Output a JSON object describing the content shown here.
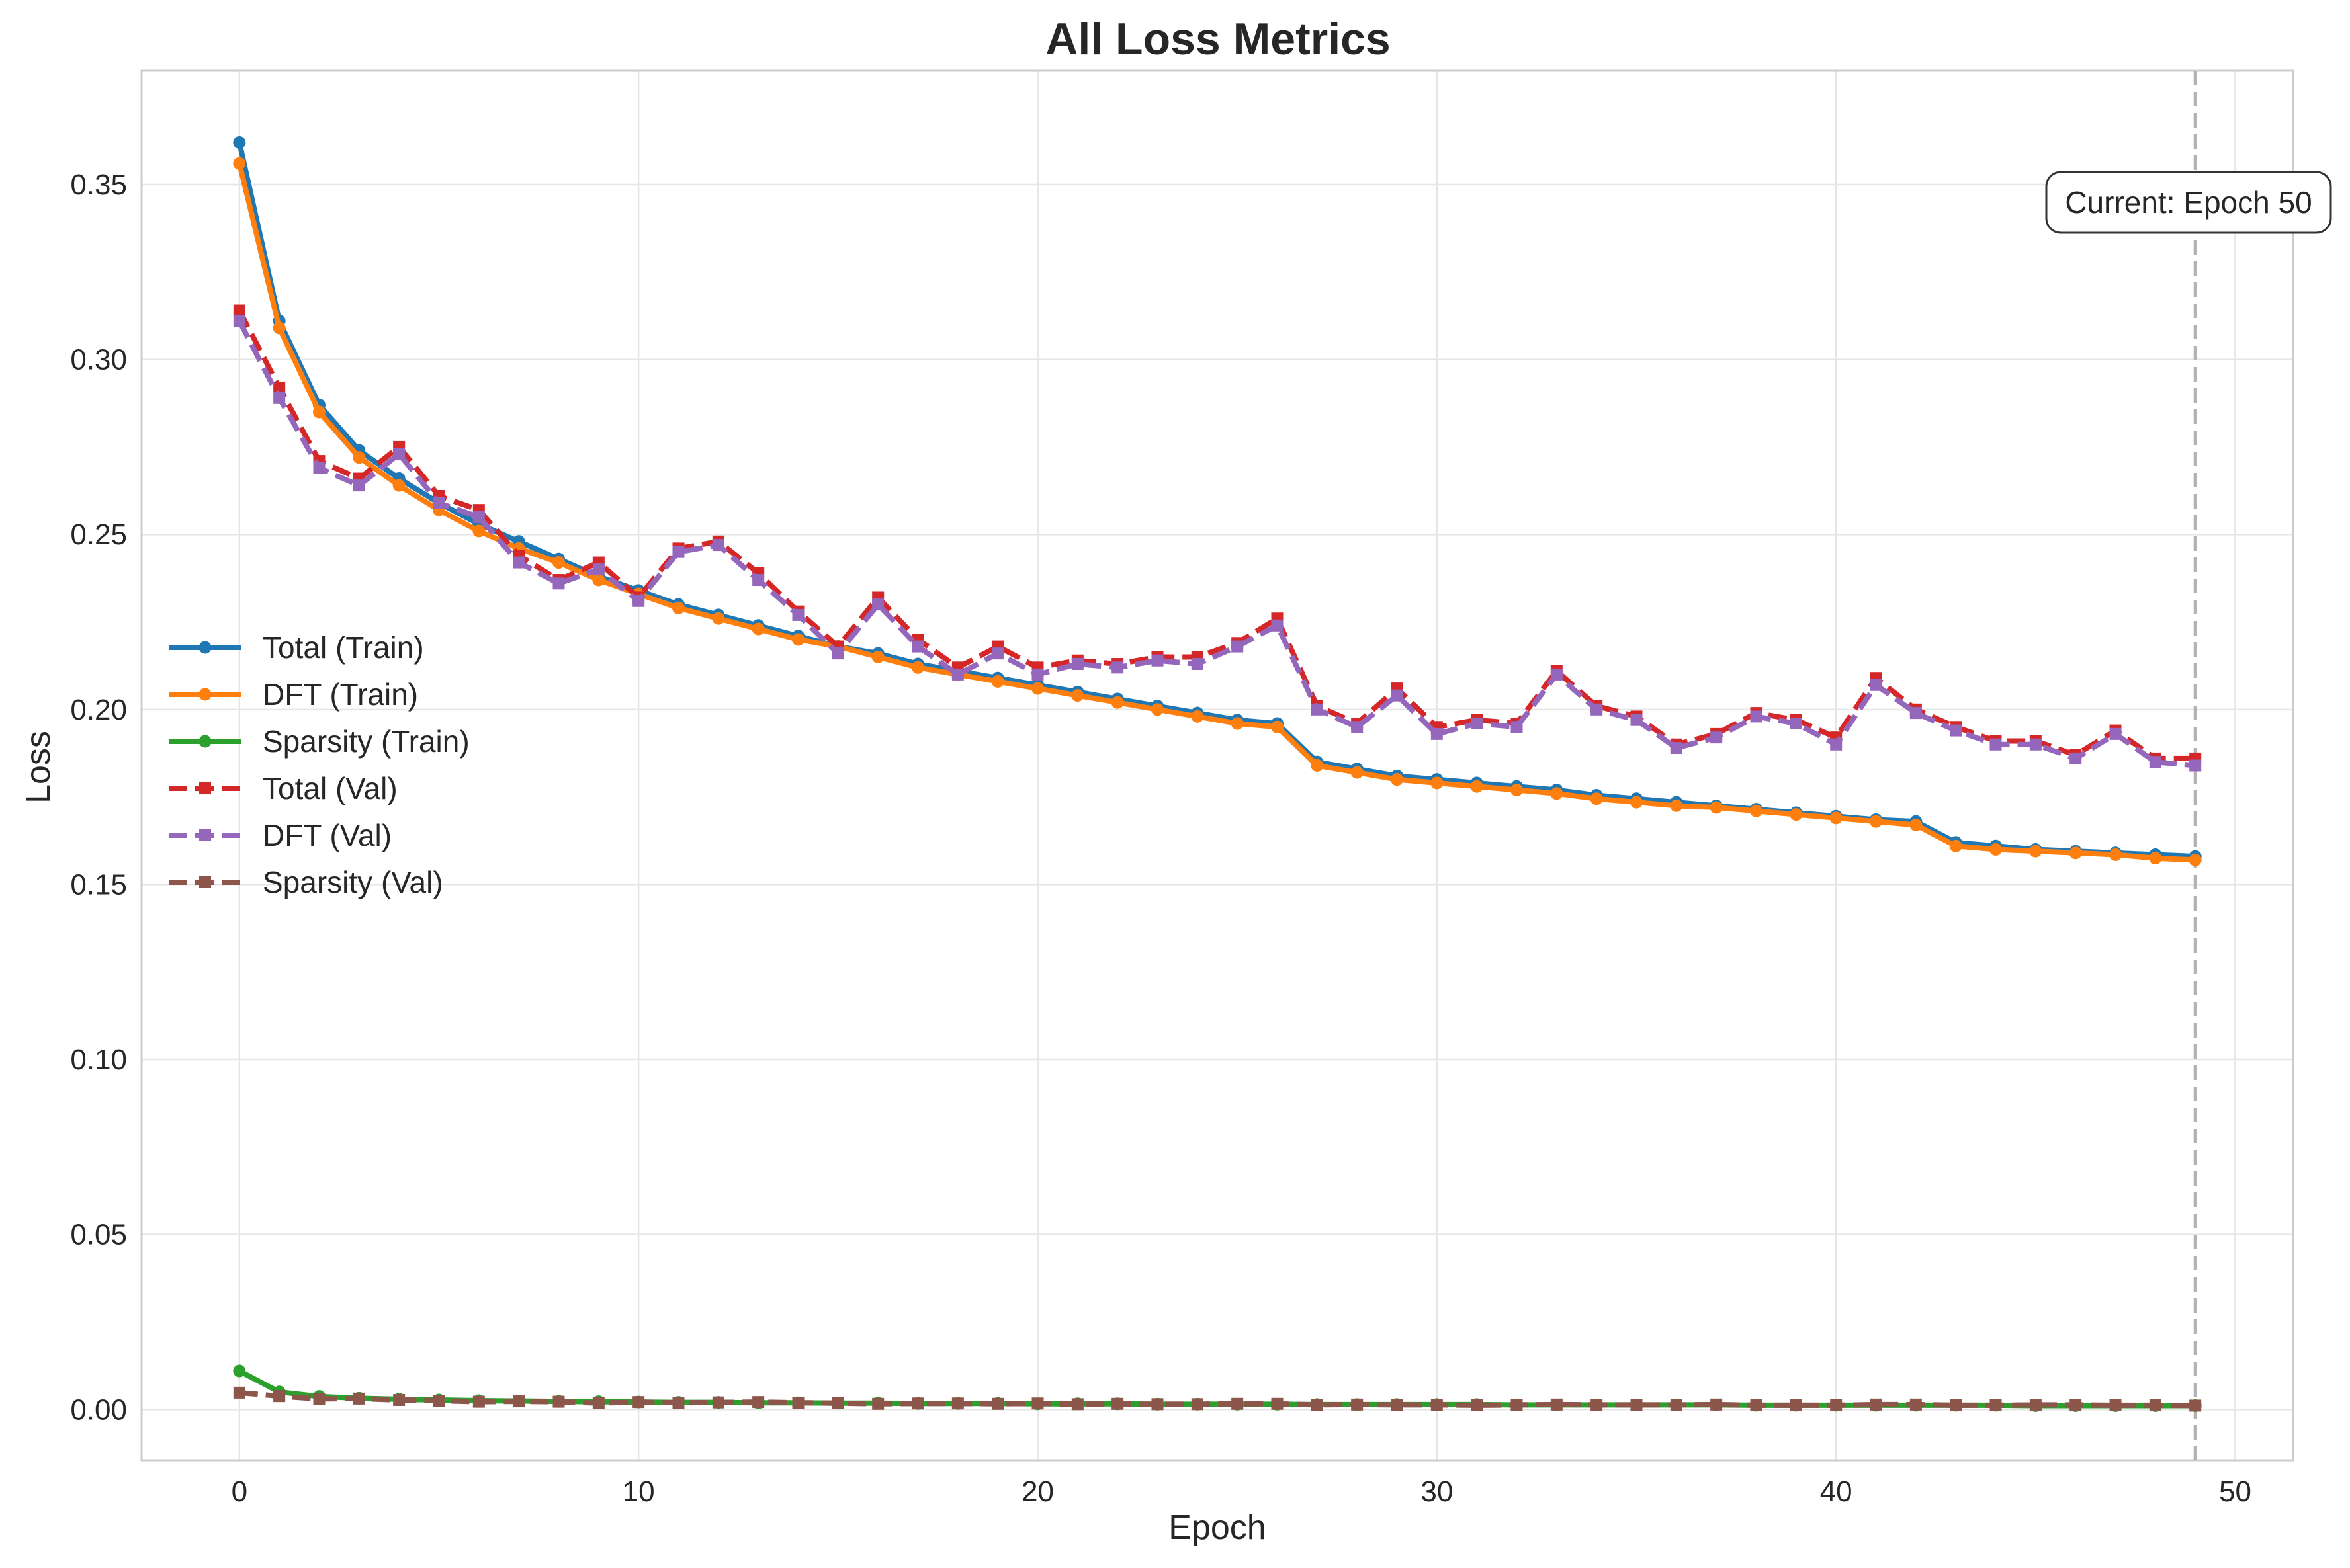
{
  "chart_data": {
    "type": "line",
    "title": "All Loss Metrics",
    "xlabel": "Epoch",
    "ylabel": "Loss",
    "xlim": [
      -2.45,
      51.45
    ],
    "ylim": [
      -0.0145,
      0.3825
    ],
    "xticks": [
      0,
      10,
      20,
      30,
      40,
      50
    ],
    "yticks": [
      0.0,
      0.05,
      0.1,
      0.15,
      0.2,
      0.25,
      0.3,
      0.35
    ],
    "ytick_labels": [
      "0.00",
      "0.05",
      "0.10",
      "0.15",
      "0.20",
      "0.25",
      "0.30",
      "0.35"
    ],
    "grid": true,
    "legend_position": "center-left",
    "x": [
      0,
      1,
      2,
      3,
      4,
      5,
      6,
      7,
      8,
      9,
      10,
      11,
      12,
      13,
      14,
      15,
      16,
      17,
      18,
      19,
      20,
      21,
      22,
      23,
      24,
      25,
      26,
      27,
      28,
      29,
      30,
      31,
      32,
      33,
      34,
      35,
      36,
      37,
      38,
      39,
      40,
      41,
      42,
      43,
      44,
      45,
      46,
      47,
      48,
      49
    ],
    "series": [
      {
        "name": "Total (Train)",
        "color": "#1f77b4",
        "style": "solid",
        "marker": "circle",
        "values": [
          0.362,
          0.311,
          0.287,
          0.274,
          0.266,
          0.259,
          0.253,
          0.248,
          0.243,
          0.238,
          0.234,
          0.23,
          0.227,
          0.224,
          0.221,
          0.218,
          0.216,
          0.213,
          0.211,
          0.209,
          0.207,
          0.205,
          0.203,
          0.201,
          0.199,
          0.197,
          0.196,
          0.185,
          0.183,
          0.181,
          0.18,
          0.179,
          0.178,
          0.177,
          0.1755,
          0.1745,
          0.1735,
          0.1725,
          0.1715,
          0.1705,
          0.1695,
          0.1685,
          0.168,
          0.162,
          0.161,
          0.16,
          0.1595,
          0.159,
          0.1585,
          0.158
        ]
      },
      {
        "name": "DFT (Train)",
        "color": "#ff7f0e",
        "style": "solid",
        "marker": "circle",
        "values": [
          0.356,
          0.309,
          0.285,
          0.272,
          0.264,
          0.257,
          0.251,
          0.246,
          0.242,
          0.237,
          0.233,
          0.229,
          0.226,
          0.223,
          0.22,
          0.218,
          0.215,
          0.212,
          0.21,
          0.208,
          0.206,
          0.204,
          0.202,
          0.2,
          0.198,
          0.196,
          0.195,
          0.184,
          0.182,
          0.18,
          0.179,
          0.178,
          0.177,
          0.176,
          0.1745,
          0.1735,
          0.1725,
          0.172,
          0.171,
          0.17,
          0.169,
          0.168,
          0.167,
          0.161,
          0.16,
          0.1595,
          0.159,
          0.1585,
          0.1575,
          0.157
        ]
      },
      {
        "name": "Sparsity (Train)",
        "color": "#2ca02c",
        "style": "solid",
        "marker": "circle",
        "values": [
          0.011,
          0.005,
          0.0037,
          0.0032,
          0.0029,
          0.0027,
          0.0025,
          0.0024,
          0.0023,
          0.0022,
          0.0021,
          0.002,
          0.002,
          0.0019,
          0.0019,
          0.0018,
          0.0018,
          0.0017,
          0.0017,
          0.0017,
          0.0016,
          0.0016,
          0.0016,
          0.0015,
          0.0015,
          0.0015,
          0.0015,
          0.0014,
          0.0014,
          0.0014,
          0.0014,
          0.0014,
          0.0013,
          0.0013,
          0.0013,
          0.0013,
          0.0013,
          0.0013,
          0.0012,
          0.0012,
          0.0012,
          0.0012,
          0.0012,
          0.0012,
          0.0012,
          0.0011,
          0.0011,
          0.0011,
          0.0011,
          0.0011
        ]
      },
      {
        "name": "Total (Val)",
        "color": "#d62728",
        "style": "dashed",
        "marker": "square",
        "values": [
          0.314,
          0.292,
          0.271,
          0.266,
          0.275,
          0.261,
          0.257,
          0.244,
          0.237,
          0.242,
          0.232,
          0.246,
          0.248,
          0.239,
          0.228,
          0.218,
          0.232,
          0.22,
          0.212,
          0.218,
          0.212,
          0.214,
          0.213,
          0.215,
          0.215,
          0.219,
          0.226,
          0.201,
          0.196,
          0.206,
          0.195,
          0.197,
          0.196,
          0.211,
          0.201,
          0.198,
          0.19,
          0.193,
          0.199,
          0.197,
          0.192,
          0.209,
          0.2,
          0.195,
          0.191,
          0.191,
          0.187,
          0.194,
          0.186,
          0.186
        ]
      },
      {
        "name": "DFT (Val)",
        "color": "#9467bd",
        "style": "dashed",
        "marker": "square",
        "values": [
          0.311,
          0.289,
          0.269,
          0.264,
          0.273,
          0.259,
          0.255,
          0.242,
          0.236,
          0.24,
          0.231,
          0.245,
          0.247,
          0.237,
          0.227,
          0.216,
          0.23,
          0.218,
          0.21,
          0.216,
          0.21,
          0.213,
          0.212,
          0.214,
          0.213,
          0.218,
          0.224,
          0.2,
          0.195,
          0.204,
          0.193,
          0.196,
          0.195,
          0.21,
          0.2,
          0.197,
          0.189,
          0.192,
          0.198,
          0.196,
          0.19,
          0.207,
          0.199,
          0.194,
          0.19,
          0.19,
          0.186,
          0.193,
          0.185,
          0.184
        ]
      },
      {
        "name": "Sparsity (Val)",
        "color": "#8c564b",
        "style": "dashed",
        "marker": "square",
        "values": [
          0.0048,
          0.0038,
          0.003,
          0.0031,
          0.0027,
          0.0025,
          0.0022,
          0.0023,
          0.0022,
          0.0018,
          0.0021,
          0.0019,
          0.002,
          0.0021,
          0.0019,
          0.0018,
          0.0016,
          0.0017,
          0.0017,
          0.0016,
          0.0017,
          0.0015,
          0.0016,
          0.0015,
          0.0015,
          0.0016,
          0.0016,
          0.0013,
          0.0014,
          0.0013,
          0.0013,
          0.0012,
          0.0013,
          0.0014,
          0.0013,
          0.0013,
          0.0013,
          0.0014,
          0.0012,
          0.0012,
          0.0012,
          0.0014,
          0.0014,
          0.0012,
          0.0012,
          0.0013,
          0.0013,
          0.0012,
          0.0012,
          0.0011
        ]
      }
    ],
    "vline": {
      "x": 49,
      "color": "#b3b3b3",
      "style": "dashed"
    },
    "annotation": {
      "text": "Current: Epoch 50"
    }
  }
}
